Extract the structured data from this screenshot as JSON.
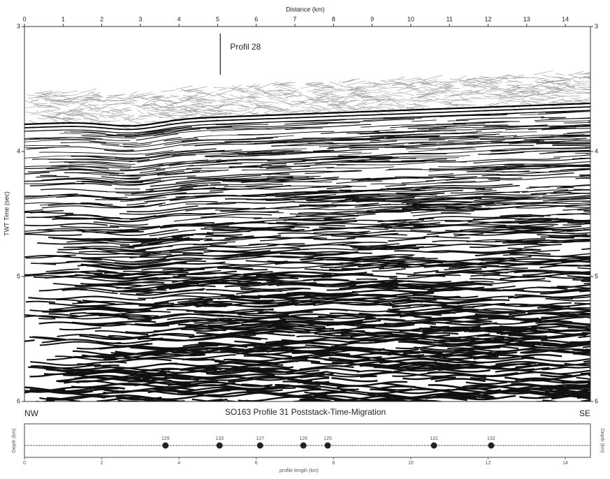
{
  "chart_data": {
    "type": "seismic-section",
    "title": "SO163 Profile 31 Poststack-Time-Migration",
    "xlabel": "Distance (km)",
    "ylabel": "TWT Time (sec)",
    "xlim": [
      0,
      14.65
    ],
    "xticks": [
      0,
      1,
      2,
      3,
      4,
      5,
      6,
      7,
      8,
      9,
      10,
      11,
      12,
      13,
      14
    ],
    "ylim": [
      3,
      6
    ],
    "yticks": [
      3,
      4,
      5,
      6
    ],
    "annotation": {
      "label": "Profil 28",
      "x": 5.07
    },
    "left_label": "NW",
    "right_label": "SE",
    "inset": {
      "xlabel": "profile length (km)",
      "ylabel": "Depth (km)",
      "xlim": [
        0,
        14.65
      ],
      "xticks": [
        0,
        2,
        4,
        6,
        8,
        10,
        12,
        14
      ],
      "stations": {
        "labels": [
          "129",
          "133",
          "127",
          "126",
          "125",
          "131",
          "132"
        ],
        "x": [
          3.65,
          5.05,
          6.1,
          7.22,
          7.85,
          10.6,
          12.08
        ]
      }
    }
  }
}
